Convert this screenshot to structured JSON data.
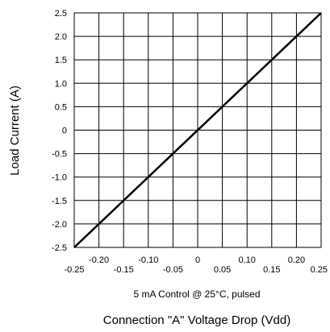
{
  "chart_data": {
    "type": "line",
    "title": "",
    "xlabel": "Connection \"A\" Voltage Drop (Vdd)",
    "ylabel": "Load Current (A)",
    "annotation": "5 mA Control @ 25°C, pulsed",
    "xlim": [
      -0.25,
      0.25
    ],
    "ylim": [
      -2.5,
      2.5
    ],
    "grid": true,
    "legend": "none",
    "x_ticks_lower": [
      "-0.25",
      "-0.15",
      "-0.05",
      "0.05",
      "0.15",
      "0.25"
    ],
    "x_ticks_upper": [
      "-0.20",
      "-0.10",
      "0",
      "0.10",
      "0.20"
    ],
    "y_ticks": [
      "2.5",
      "2.0",
      "1.5",
      "1.0",
      "0.5",
      "0",
      "-0.5",
      "-1.0",
      "-1.5",
      "-2.0",
      "-2.5"
    ],
    "series": [
      {
        "color": "#000000",
        "x": [
          -0.25,
          0.25
        ],
        "y": [
          -2.5,
          2.5
        ]
      }
    ]
  }
}
